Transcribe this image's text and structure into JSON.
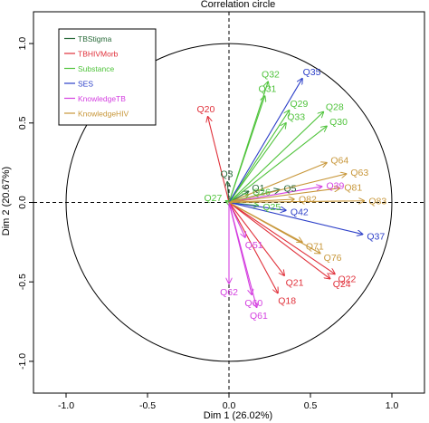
{
  "chart_data": {
    "type": "scatter",
    "title": "Correlation circle",
    "xlabel": "Dim 1 (26.02%)",
    "ylabel": "Dim 2 (20.67%)",
    "xlim": [
      -1.2,
      1.2
    ],
    "ylim": [
      -1.2,
      1.2
    ],
    "x_ticks": [
      "-1.0",
      "-0.5",
      "0.0",
      "0.5",
      "1.0"
    ],
    "y_ticks": [
      "-1.0",
      "-0.5",
      "0.0",
      "0.5",
      "1.0"
    ],
    "legend_position": "top-left",
    "legend": [
      {
        "name": "TBStigma",
        "color": "#2a6b3a"
      },
      {
        "name": "TBHIVMorb",
        "color": "#e0303a"
      },
      {
        "name": "Substance",
        "color": "#4fc33b"
      },
      {
        "name": "SES",
        "color": "#2c3fc8"
      },
      {
        "name": "KnowledgeTB",
        "color": "#d43fe0"
      },
      {
        "name": "KnowledgeHIV",
        "color": "#c8973a"
      }
    ],
    "series": [
      {
        "name": "TBStigma",
        "color": "#2a6b3a",
        "points": [
          {
            "label": "Q3",
            "x": -0.01,
            "y": 0.13
          },
          {
            "label": "Q1",
            "x": 0.12,
            "y": 0.07
          },
          {
            "label": "Q5",
            "x": 0.31,
            "y": 0.08
          }
        ]
      },
      {
        "name": "TBHIVMorb",
        "color": "#e0303a",
        "points": [
          {
            "label": "Q20",
            "x": -0.13,
            "y": 0.54
          },
          {
            "label": "Q22",
            "x": 0.65,
            "y": -0.45
          },
          {
            "label": "Q24",
            "x": 0.62,
            "y": -0.48
          },
          {
            "label": "Q21",
            "x": 0.34,
            "y": -0.46
          },
          {
            "label": "Q18",
            "x": 0.3,
            "y": -0.57
          }
        ]
      },
      {
        "name": "Substance",
        "color": "#4fc33b",
        "points": [
          {
            "label": "Q32",
            "x": 0.24,
            "y": 0.76
          },
          {
            "label": "Q31",
            "x": 0.22,
            "y": 0.67
          },
          {
            "label": "Q29",
            "x": 0.37,
            "y": 0.58
          },
          {
            "label": "Q28",
            "x": 0.58,
            "y": 0.57
          },
          {
            "label": "Q33",
            "x": 0.35,
            "y": 0.5
          },
          {
            "label": "Q30",
            "x": 0.6,
            "y": 0.48
          },
          {
            "label": "Q27",
            "x": -0.02,
            "y": 0.01
          },
          {
            "label": "Q26",
            "x": 0.12,
            "y": 0.05
          },
          {
            "label": "Q25",
            "x": 0.18,
            "y": -0.02
          }
        ]
      },
      {
        "name": "SES",
        "color": "#2c3fc8",
        "points": [
          {
            "label": "Q35",
            "x": 0.45,
            "y": 0.78
          },
          {
            "label": "Q37",
            "x": 0.82,
            "y": -0.2
          },
          {
            "label": "Q42",
            "x": 0.35,
            "y": -0.05
          }
        ]
      },
      {
        "name": "KnowledgeTB",
        "color": "#d43fe0",
        "points": [
          {
            "label": "Q39",
            "x": 0.57,
            "y": 0.1
          },
          {
            "label": "Q51",
            "x": 0.1,
            "y": -0.22
          },
          {
            "label": "Q62",
            "x": 0.0,
            "y": -0.51
          },
          {
            "label": "Q60",
            "x": 0.14,
            "y": -0.58
          },
          {
            "label": "Q61",
            "x": 0.17,
            "y": -0.66
          }
        ]
      },
      {
        "name": "KnowledgeHIV",
        "color": "#c8973a",
        "points": [
          {
            "label": "Q64",
            "x": 0.6,
            "y": 0.25
          },
          {
            "label": "Q63",
            "x": 0.72,
            "y": 0.18
          },
          {
            "label": "Q81",
            "x": 0.68,
            "y": 0.09
          },
          {
            "label": "Q82",
            "x": 0.4,
            "y": 0.02
          },
          {
            "label": "Q83",
            "x": 0.83,
            "y": 0.01
          },
          {
            "label": "Q71",
            "x": 0.45,
            "y": -0.25
          },
          {
            "label": "Q76",
            "x": 0.56,
            "y": -0.32
          }
        ]
      }
    ]
  }
}
